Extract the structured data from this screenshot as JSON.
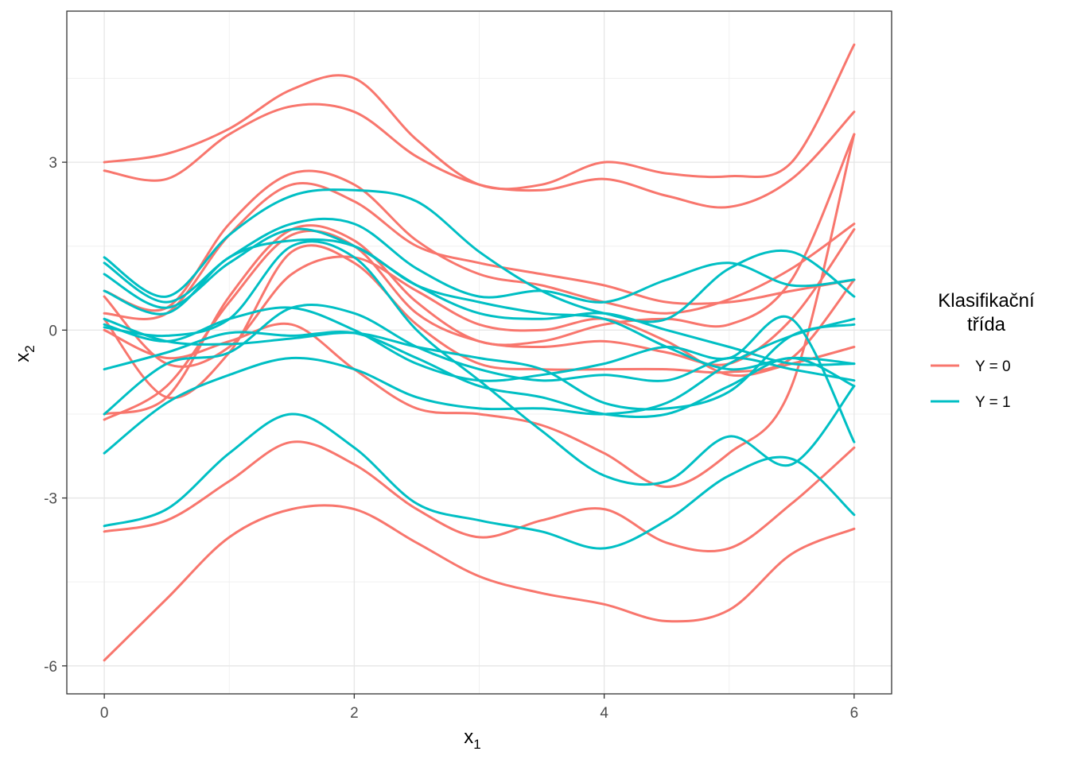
{
  "chart_data": {
    "type": "line",
    "xlabel": "x",
    "xlabel_sub": "1",
    "ylabel": "x",
    "ylabel_sub": "2",
    "xlim": [
      -0.3,
      6.3
    ],
    "ylim": [
      -6.5,
      5.7
    ],
    "x_ticks": [
      0,
      2,
      4,
      6
    ],
    "x_tick_labels": [
      "0",
      "2",
      "4",
      "6"
    ],
    "y_ticks": [
      3,
      0,
      -3,
      -6
    ],
    "y_tick_labels": [
      "3",
      "0",
      "-3",
      "-6"
    ],
    "grid": true,
    "legend": {
      "title_line1": "Klasifikační",
      "title_line2": "třída",
      "position": "right",
      "entries": [
        {
          "label": "Y = 0",
          "color": "#F8766D"
        },
        {
          "label": "Y = 1",
          "color": "#00BFC4"
        }
      ]
    },
    "x": [
      0,
      0.5,
      1,
      1.5,
      2,
      2.5,
      3,
      3.5,
      4,
      4.5,
      5,
      5.5,
      6
    ],
    "series": [
      {
        "group": "Y = 0",
        "color": "#F8766D",
        "values": [
          3.0,
          3.15,
          3.6,
          4.3,
          4.5,
          3.4,
          2.6,
          2.6,
          3.0,
          2.8,
          2.75,
          3.0,
          5.1
        ]
      },
      {
        "group": "Y = 0",
        "color": "#F8766D",
        "values": [
          2.85,
          2.7,
          3.5,
          4.0,
          3.9,
          3.1,
          2.6,
          2.5,
          2.7,
          2.4,
          2.2,
          2.7,
          3.9
        ]
      },
      {
        "group": "Y = 0",
        "color": "#F8766D",
        "values": [
          0.7,
          0.4,
          1.9,
          2.8,
          2.6,
          1.6,
          1.0,
          0.8,
          0.5,
          0.3,
          0.55,
          1.1,
          1.9
        ]
      },
      {
        "group": "Y = 0",
        "color": "#F8766D",
        "values": [
          0.3,
          0.3,
          1.7,
          2.6,
          2.3,
          1.5,
          1.2,
          1.0,
          0.8,
          0.5,
          0.5,
          0.7,
          0.9
        ]
      },
      {
        "group": "Y = 0",
        "color": "#F8766D",
        "values": [
          -1.5,
          -1.2,
          0.6,
          1.8,
          1.6,
          0.5,
          -0.2,
          -0.2,
          0.1,
          0.2,
          0.1,
          0.9,
          3.5
        ]
      },
      {
        "group": "Y = 0",
        "color": "#F8766D",
        "values": [
          -1.6,
          -1.0,
          0.5,
          1.7,
          1.5,
          0.3,
          -0.2,
          -0.3,
          -0.2,
          -0.4,
          -0.6,
          0.2,
          1.8
        ]
      },
      {
        "group": "Y = 0",
        "color": "#F8766D",
        "values": [
          0.2,
          -1.2,
          -0.4,
          1.4,
          1.2,
          0.1,
          -0.6,
          -0.7,
          -0.7,
          -0.7,
          -0.75,
          -0.5,
          0.9
        ]
      },
      {
        "group": "Y = 0",
        "color": "#F8766D",
        "values": [
          0.6,
          -0.6,
          -0.3,
          1.0,
          1.3,
          0.7,
          0.1,
          0.0,
          0.2,
          -0.2,
          -0.8,
          -0.6,
          -0.3
        ]
      },
      {
        "group": "Y = 0",
        "color": "#F8766D",
        "values": [
          0.0,
          -0.5,
          -0.2,
          0.1,
          -0.7,
          -1.4,
          -1.5,
          -1.7,
          -2.2,
          -2.8,
          -2.2,
          -1.0,
          3.5
        ]
      },
      {
        "group": "Y = 0",
        "color": "#F8766D",
        "values": [
          -3.6,
          -3.4,
          -2.7,
          -2.0,
          -2.4,
          -3.2,
          -3.7,
          -3.4,
          -3.2,
          -3.8,
          -3.9,
          -3.1,
          -2.1
        ]
      },
      {
        "group": "Y = 0",
        "color": "#F8766D",
        "values": [
          -5.9,
          -4.8,
          -3.7,
          -3.2,
          -3.2,
          -3.8,
          -4.4,
          -4.7,
          -4.9,
          -5.2,
          -5.0,
          -4.0,
          -3.55
        ]
      },
      {
        "group": "Y = 1",
        "color": "#00BFC4",
        "values": [
          1.3,
          0.6,
          1.7,
          2.4,
          2.5,
          2.3,
          1.4,
          0.7,
          0.3,
          0.2,
          1.1,
          1.4,
          0.6
        ]
      },
      {
        "group": "Y = 1",
        "color": "#00BFC4",
        "values": [
          1.2,
          0.5,
          1.3,
          1.9,
          1.9,
          1.1,
          0.6,
          0.7,
          0.5,
          0.9,
          1.2,
          0.8,
          0.9
        ]
      },
      {
        "group": "Y = 1",
        "color": "#00BFC4",
        "values": [
          1.0,
          0.4,
          1.2,
          1.8,
          1.5,
          0.8,
          0.3,
          0.2,
          0.3,
          0.0,
          -0.3,
          -0.6,
          -0.6
        ]
      },
      {
        "group": "Y = 1",
        "color": "#00BFC4",
        "values": [
          0.7,
          0.3,
          1.3,
          1.6,
          1.5,
          0.8,
          0.5,
          0.3,
          0.2,
          -0.3,
          -0.7,
          -0.5,
          -0.6
        ]
      },
      {
        "group": "Y = 1",
        "color": "#00BFC4",
        "values": [
          0.1,
          -0.2,
          0.2,
          0.4,
          0.0,
          -0.6,
          -0.9,
          -0.8,
          -0.6,
          -0.3,
          -0.5,
          0.2,
          -2.0
        ]
      },
      {
        "group": "Y = 1",
        "color": "#00BFC4",
        "values": [
          0.2,
          -0.2,
          -0.25,
          -0.15,
          -0.05,
          -0.3,
          -0.5,
          -0.7,
          -1.3,
          -1.4,
          -1.1,
          -0.1,
          0.1
        ]
      },
      {
        "group": "Y = 1",
        "color": "#00BFC4",
        "values": [
          -1.5,
          -0.6,
          -0.4,
          0.4,
          0.3,
          -0.3,
          -0.7,
          -0.9,
          -0.8,
          -0.9,
          -0.5,
          -0.7,
          -0.9
        ]
      },
      {
        "group": "Y = 1",
        "color": "#00BFC4",
        "values": [
          -0.7,
          -0.4,
          -0.05,
          -0.1,
          -0.05,
          -0.5,
          -1.0,
          -1.2,
          -1.5,
          -1.5,
          -1.0,
          -0.5,
          -1.0
        ]
      },
      {
        "group": "Y = 1",
        "color": "#00BFC4",
        "values": [
          -2.2,
          -1.3,
          -0.8,
          -0.5,
          -0.7,
          -1.2,
          -1.4,
          -1.4,
          -1.5,
          -1.3,
          -0.6,
          -0.1,
          0.2
        ]
      },
      {
        "group": "Y = 1",
        "color": "#00BFC4",
        "values": [
          -3.5,
          -3.2,
          -2.2,
          -1.5,
          -2.1,
          -3.1,
          -3.4,
          -3.6,
          -3.9,
          -3.4,
          -2.6,
          -2.3,
          -3.3
        ]
      },
      {
        "group": "Y = 1",
        "color": "#00BFC4",
        "values": [
          0.05,
          -0.1,
          0.2,
          1.5,
          1.3,
          0.0,
          -0.9,
          -1.8,
          -2.6,
          -2.7,
          -1.9,
          -2.4,
          -1.0
        ]
      }
    ]
  }
}
